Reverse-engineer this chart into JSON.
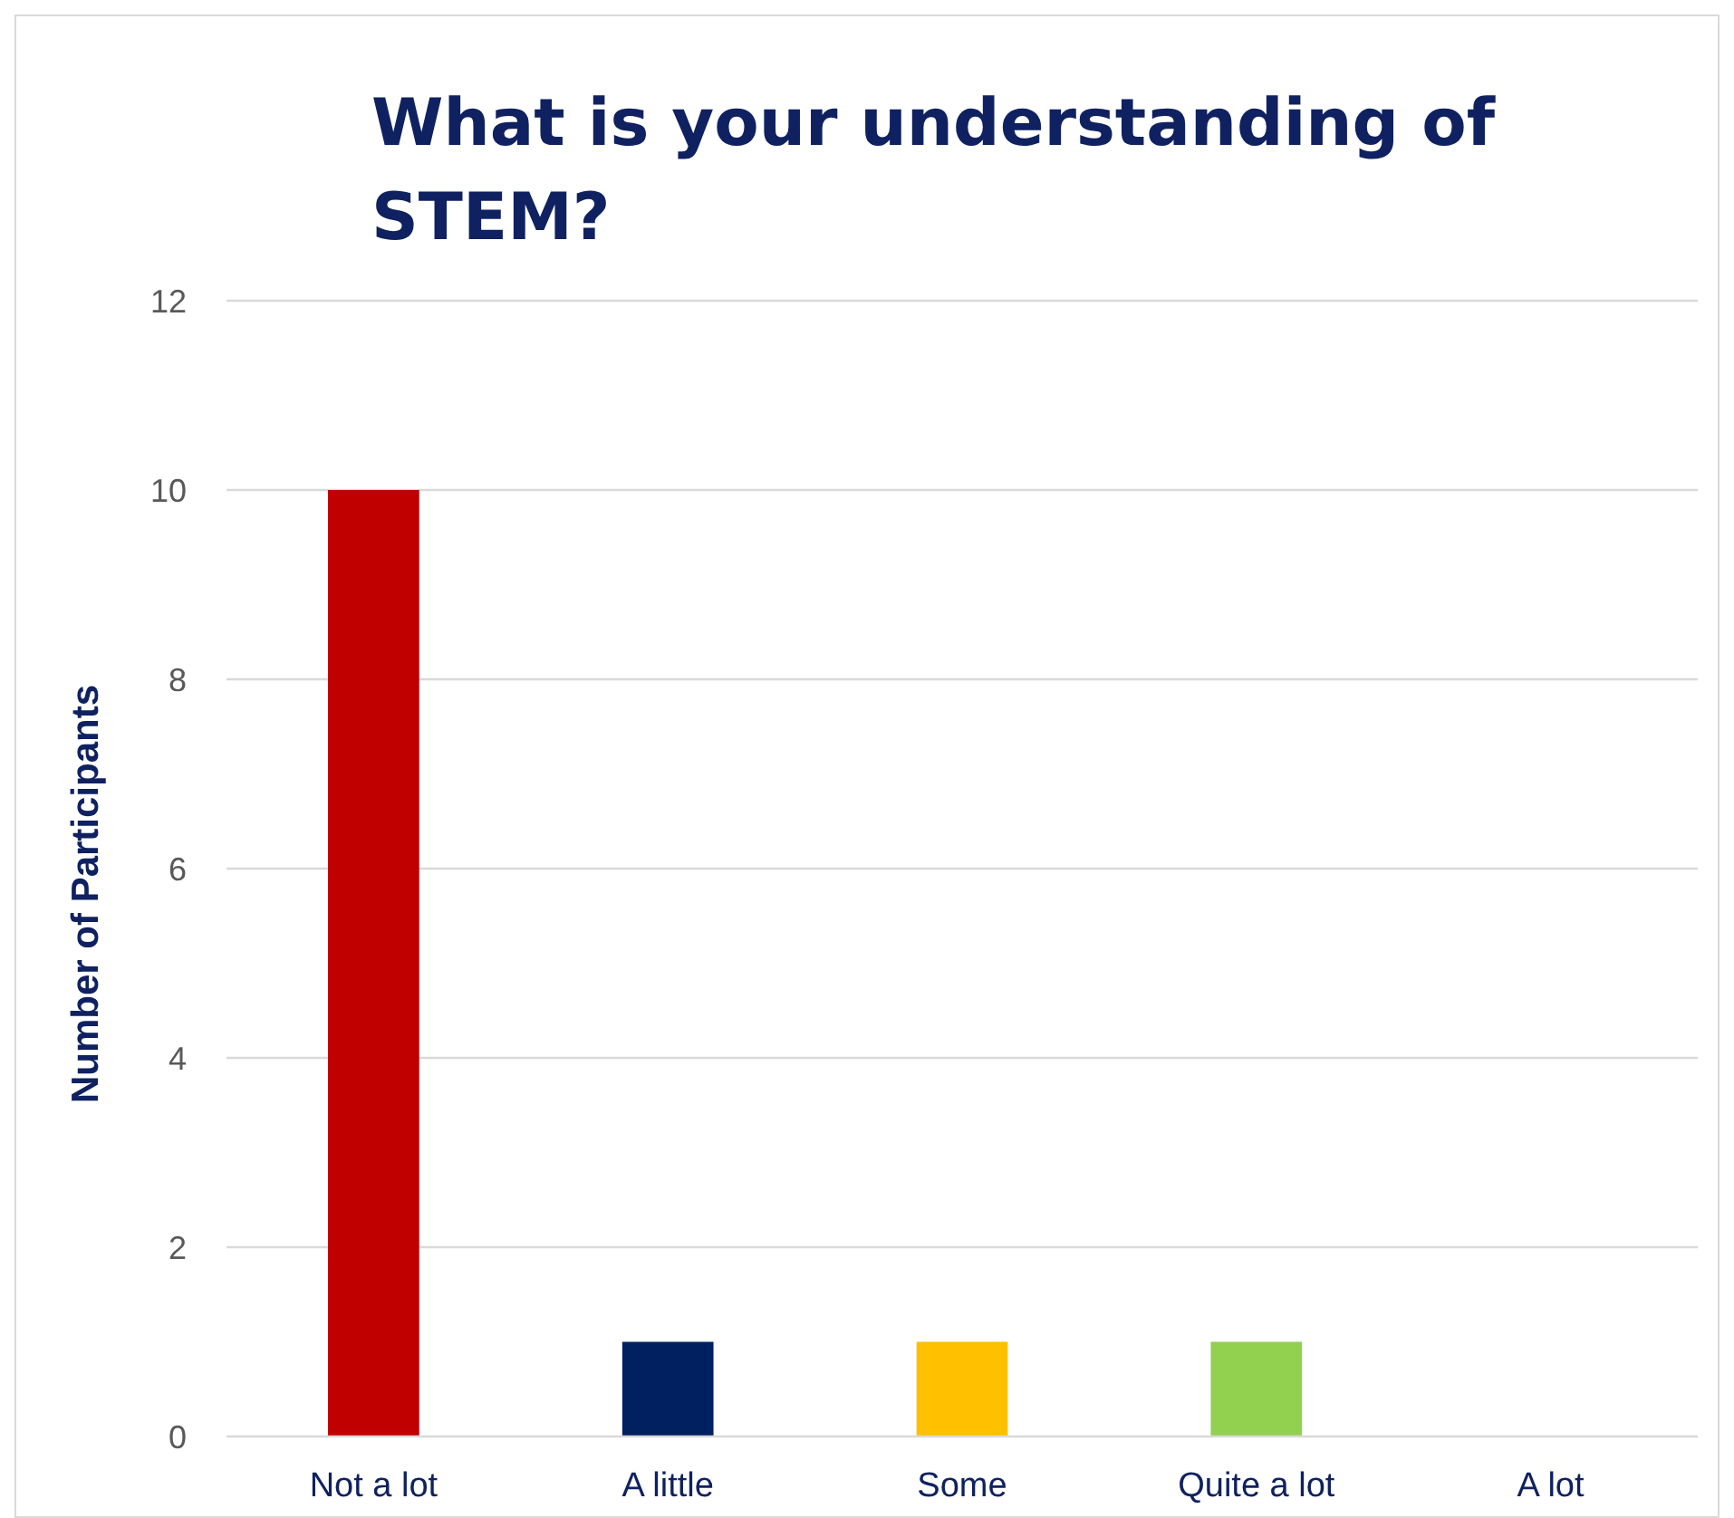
{
  "chart_data": {
    "type": "bar",
    "title": "What is your understanding of STEM?",
    "ylabel": "Number of Participants",
    "categories": [
      "Not a lot",
      "A little",
      "Some",
      "Quite a lot",
      "A lot"
    ],
    "values": [
      10,
      1,
      1,
      1,
      0
    ],
    "colors": [
      "#c00000",
      "#002060",
      "#ffc000",
      "#92d050",
      "#5b9bd5"
    ],
    "ylim": [
      0,
      12
    ],
    "yticks": [
      0,
      2,
      4,
      6,
      8,
      10,
      12
    ],
    "grid": "y"
  }
}
